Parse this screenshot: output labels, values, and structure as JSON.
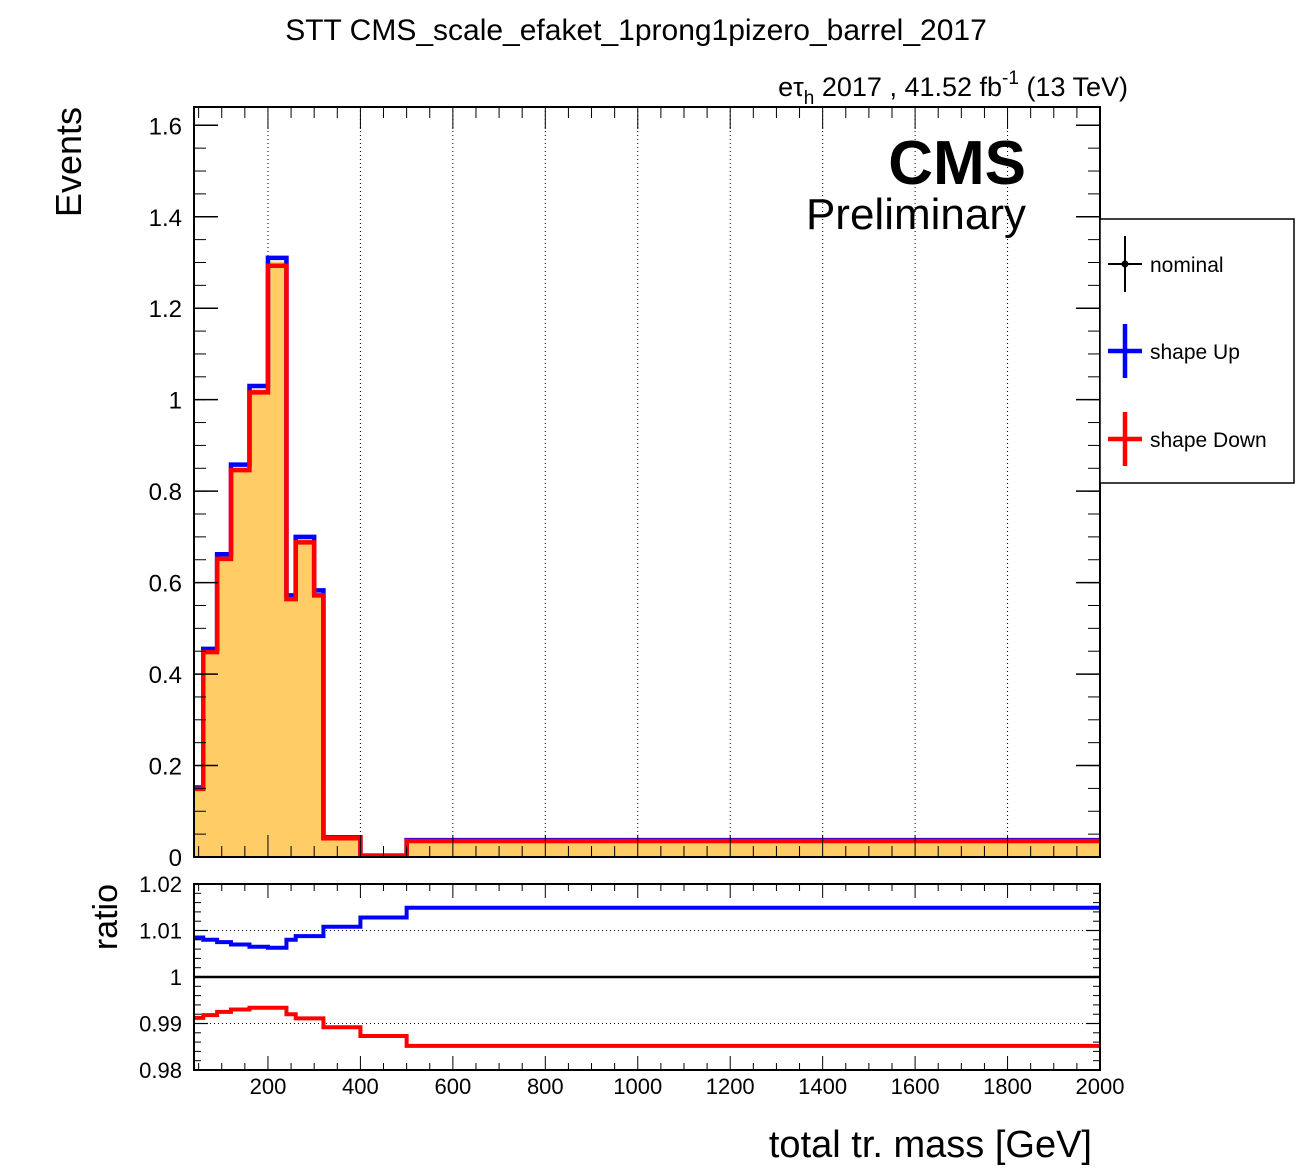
{
  "header": {
    "title": "STT CMS_scale_efaket_1prong1pizero_barrel_2017",
    "lumi_channel_e": "e",
    "lumi_channel_tau": "τ",
    "lumi_channel_sub": "h",
    "lumi_text": " 2017 , 41.52 fb",
    "lumi_sup": "-1",
    "lumi_energy": " (13 TeV)",
    "cms_label": "CMS",
    "cms_sub_label": "Preliminary"
  },
  "legend": {
    "entries": [
      {
        "label": "nominal",
        "color": "#000000"
      },
      {
        "label": "shape Up",
        "color": "#0000ff"
      },
      {
        "label": "shape Down",
        "color": "#ff0000"
      }
    ]
  },
  "colors": {
    "fill": "#ffcc66",
    "up": "#0000ff",
    "down": "#ff0000",
    "nominal": "#000000"
  },
  "chart_data": [
    {
      "type": "bar",
      "panel": "main",
      "ylabel": "Events",
      "xlim": [
        40,
        2000
      ],
      "ylim": [
        0,
        1.64
      ],
      "grid": true,
      "legend_position": "right-outside",
      "bin_edges": [
        40,
        60,
        90,
        120,
        160,
        200,
        240,
        260,
        300,
        320,
        400,
        500,
        2000
      ],
      "yticks": [
        0,
        0.2,
        0.4,
        0.6,
        0.8,
        1,
        1.2,
        1.4,
        1.6
      ],
      "ytick_labels": [
        "0",
        "0.2",
        "0.4",
        "0.6",
        "0.8",
        "1",
        "1.2",
        "1.4",
        "1.6"
      ],
      "series": [
        {
          "name": "nominal",
          "values": [
            0.15,
            0.452,
            0.657,
            0.852,
            1.023,
            1.302,
            0.568,
            0.695,
            0.577,
            0.042,
            0.003,
            0.036
          ]
        },
        {
          "name": "shape Up",
          "values": [
            0.152,
            0.455,
            0.662,
            0.858,
            1.03,
            1.31,
            0.572,
            0.7,
            0.583,
            0.043,
            0.003,
            0.037
          ]
        },
        {
          "name": "shape Down",
          "values": [
            0.149,
            0.448,
            0.652,
            0.846,
            1.016,
            1.293,
            0.564,
            0.688,
            0.572,
            0.041,
            0.003,
            0.035
          ]
        }
      ]
    },
    {
      "type": "line",
      "panel": "ratio",
      "ylabel": "ratio",
      "xlabel": "total tr. mass [GeV]",
      "xlim": [
        40,
        2000
      ],
      "ylim": [
        0.98,
        1.02
      ],
      "grid": true,
      "bin_edges": [
        40,
        60,
        90,
        120,
        160,
        200,
        240,
        260,
        300,
        320,
        400,
        500,
        2000
      ],
      "yticks": [
        0.98,
        0.99,
        1,
        1.01,
        1.02
      ],
      "ytick_labels": [
        "0.98",
        "0.99",
        "1",
        "1.01",
        "1.02"
      ],
      "xticks": [
        200,
        400,
        600,
        800,
        1000,
        1200,
        1400,
        1600,
        1800,
        2000
      ],
      "xtick_labels": [
        "200",
        "400",
        "600",
        "800",
        "1000",
        "1200",
        "1400",
        "1600",
        "1800",
        "2000"
      ],
      "reference_line": 1,
      "series": [
        {
          "name": "shape Up",
          "values": [
            1.0085,
            1.008,
            1.0075,
            1.007,
            1.0065,
            1.0063,
            1.008,
            1.0088,
            1.0088,
            1.0108,
            1.0128,
            1.0149
          ]
        },
        {
          "name": "shape Down",
          "values": [
            0.9912,
            0.9918,
            0.9925,
            0.993,
            0.9934,
            0.9934,
            0.992,
            0.9911,
            0.9911,
            0.9892,
            0.9873,
            0.9852
          ]
        }
      ]
    }
  ]
}
